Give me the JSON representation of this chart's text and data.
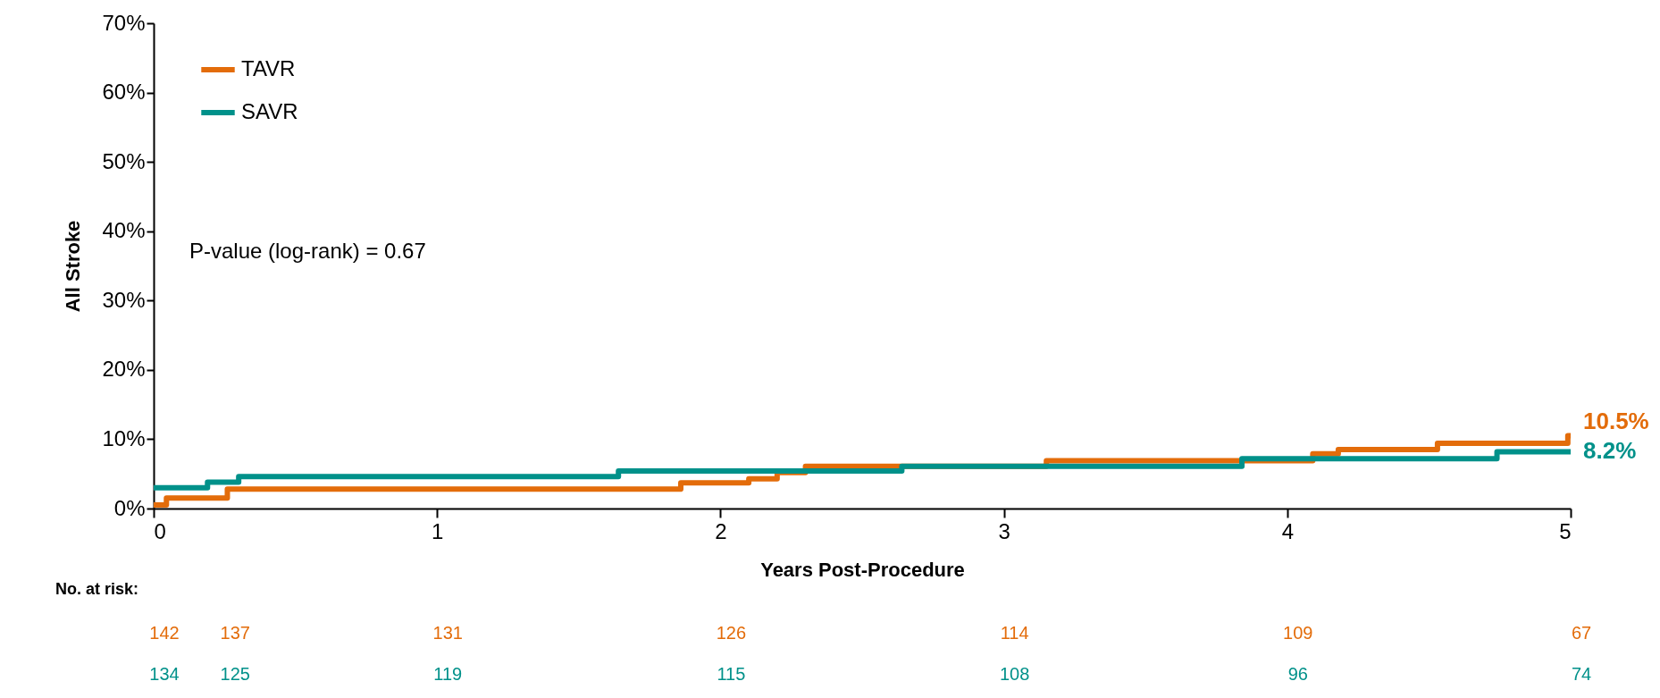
{
  "chart_data": {
    "type": "step",
    "xlabel": "Years Post-Procedure",
    "ylabel": "All Stroke",
    "xlim": [
      0,
      5
    ],
    "xticks": [
      0,
      1,
      2,
      3,
      4,
      5
    ],
    "ylim": [
      0,
      70
    ],
    "yticks": [
      {
        "value": 0,
        "label": "0%"
      },
      {
        "value": 10,
        "label": "10%"
      },
      {
        "value": 20,
        "label": "20%"
      },
      {
        "value": 30,
        "label": "30%"
      },
      {
        "value": 40,
        "label": "40%"
      },
      {
        "value": 50,
        "label": "50%"
      },
      {
        "value": 60,
        "label": "60%"
      },
      {
        "value": 70,
        "label": "70%"
      }
    ],
    "grid": false,
    "legend": "top left",
    "marker": "none",
    "line_style": "solid",
    "series": [
      {
        "name": "TAVR",
        "color": "#e36c0a",
        "x": [
          0,
          0.045,
          0.26,
          1.86,
          2.1,
          2.2,
          2.3,
          3.15,
          4.09,
          4.18,
          4.53,
          4.99,
          5
        ],
        "values": [
          0.5,
          1.5,
          2.8,
          3.7,
          4.3,
          5.2,
          6.1,
          6.9,
          7.9,
          8.5,
          9.4,
          10.5,
          10.5
        ]
      },
      {
        "name": "SAVR",
        "color": "#00918a",
        "x": [
          0,
          0.19,
          0.3,
          1.64,
          2.64,
          3.84,
          4.74,
          5
        ],
        "values": [
          3.0,
          3.8,
          4.6,
          5.4,
          6.1,
          7.2,
          8.2,
          8.2
        ]
      }
    ],
    "annotations": [
      "P-value (log-rank) = 0.67",
      "No. at risk:",
      {
        "text": "10.5%",
        "x": 5,
        "y": 10.5
      },
      {
        "text": "8.2%",
        "x": 5,
        "y": 8.2
      },
      "142",
      "137",
      "131",
      "126",
      "114",
      "109",
      "67",
      "134",
      "125",
      "119",
      "115",
      "108",
      "96",
      "74"
    ]
  }
}
